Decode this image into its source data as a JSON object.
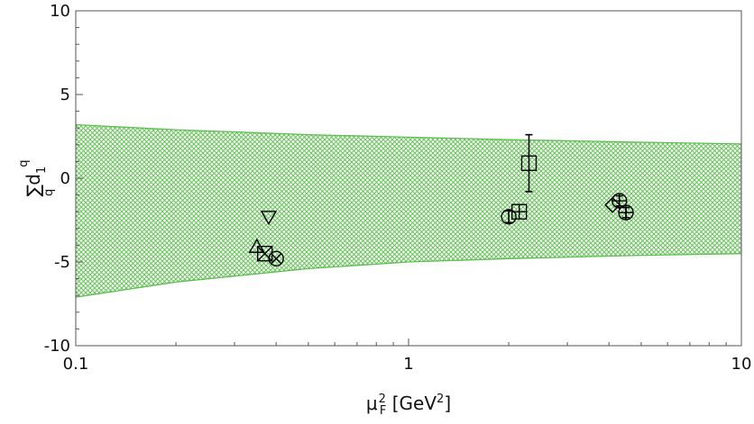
{
  "chart_data": {
    "type": "scatter",
    "x_scale": "log",
    "xlim": [
      0.1,
      10
    ],
    "ylim": [
      -10,
      10
    ],
    "x_ticks": [
      {
        "value": 0.1,
        "label": "0.1"
      },
      {
        "value": 1,
        "label": "1"
      },
      {
        "value": 10,
        "label": "10"
      }
    ],
    "y_ticks": [
      {
        "value": -10,
        "label": "-10"
      },
      {
        "value": -5,
        "label": "-5"
      },
      {
        "value": 0,
        "label": "0"
      },
      {
        "value": 5,
        "label": "5"
      },
      {
        "value": 10,
        "label": "10"
      }
    ],
    "xlabel": "μ_F^2 [GeV^2]",
    "ylabel": "Σ_q d_1^q",
    "grid": false,
    "band": {
      "color": "#5cbf4f",
      "x": [
        0.1,
        0.2,
        0.5,
        1,
        2,
        5,
        10
      ],
      "upper": [
        3.2,
        2.9,
        2.6,
        2.45,
        2.3,
        2.15,
        2.05
      ],
      "lower": [
        -7.1,
        -6.2,
        -5.4,
        -5.0,
        -4.8,
        -4.6,
        -4.5
      ]
    },
    "points": [
      {
        "marker": "triangle-down",
        "x": 0.38,
        "y": -2.3
      },
      {
        "marker": "triangle-up",
        "x": 0.35,
        "y": -4.1
      },
      {
        "marker": "square-x",
        "x": 0.37,
        "y": -4.5
      },
      {
        "marker": "circle-x",
        "x": 0.4,
        "y": -4.8
      },
      {
        "marker": "circle",
        "x": 2.0,
        "y": -2.3,
        "err": 0.35
      },
      {
        "marker": "square-plus",
        "x": 2.15,
        "y": -2.0
      },
      {
        "marker": "square",
        "x": 2.3,
        "y": 0.9,
        "err": 1.7
      },
      {
        "marker": "diamond",
        "x": 4.1,
        "y": -1.6
      },
      {
        "marker": "circle-plus",
        "x": 4.3,
        "y": -1.35,
        "err": 0.3
      },
      {
        "marker": "circle-plus",
        "x": 4.5,
        "y": -2.05,
        "err": 0.3
      }
    ]
  }
}
